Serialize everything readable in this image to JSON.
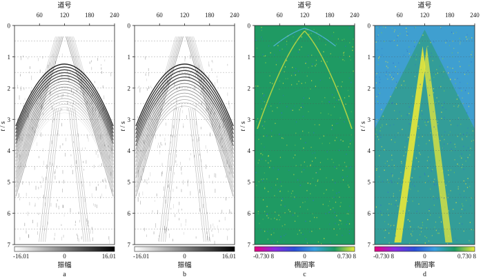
{
  "panels": [
    {
      "id": "a",
      "kind": "amplitude",
      "x_label": "道号",
      "y_label_main": "t",
      "y_label_unit": "/ s",
      "x_ticks": [
        "60",
        "120",
        "180",
        "240"
      ],
      "y_ticks": [
        "0",
        "1",
        "2",
        "3",
        "4",
        "5",
        "6",
        "7"
      ],
      "colorbar": {
        "min_label": "-16.01",
        "mid_label": "0",
        "max_label": "16.01",
        "title": "振幅"
      },
      "caption": "a"
    },
    {
      "id": "b",
      "kind": "amplitude",
      "x_label": "",
      "y_label_main": "t",
      "y_label_unit": "/ s",
      "x_ticks": [
        "60",
        "120",
        "180",
        "240"
      ],
      "y_ticks": [
        "0",
        "1",
        "2",
        "3",
        "4",
        "5",
        "6",
        "7"
      ],
      "colorbar": {
        "min_label": "-16.01",
        "mid_label": "0",
        "max_label": "16.01",
        "title": "振幅"
      },
      "caption": "b"
    },
    {
      "id": "c",
      "kind": "ellipticity",
      "x_label": "道号",
      "y_label_main": "t",
      "y_label_unit": "/ s",
      "x_ticks": [
        "60",
        "120",
        "180",
        "240"
      ],
      "y_ticks": [
        "0",
        "1",
        "2",
        "3",
        "4",
        "5",
        "6",
        "7"
      ],
      "colorbar": {
        "min_label": "-0.730 8",
        "mid_label": "0",
        "max_label": "0.730 8",
        "title": "椭圆率"
      },
      "caption": "c"
    },
    {
      "id": "d",
      "kind": "ellipticity",
      "x_label": "道号",
      "y_label_main": "t",
      "y_label_unit": "/ s",
      "x_ticks": [
        "60",
        "120",
        "180",
        "240"
      ],
      "y_ticks": [
        "0",
        "1",
        "2",
        "3",
        "4",
        "5",
        "6",
        "7"
      ],
      "colorbar": {
        "min_label": "-0.730 8",
        "mid_label": "0",
        "max_label": "0.730 8",
        "title": "椭圆率"
      },
      "caption": "d"
    }
  ],
  "colors": {
    "ellipticity_bg_c": "#1f9a63",
    "ellipticity_bg_d": "#3f9fd0",
    "ellipticity_high": "#e8e83a",
    "ellipticity_ramp": [
      "#e6007e",
      "#8a2be2",
      "#2a4fd6",
      "#3aa0e0",
      "#1e9a62",
      "#e8ec3a"
    ],
    "amplitude_ramp": [
      "#ffffff",
      "#000000"
    ]
  }
}
